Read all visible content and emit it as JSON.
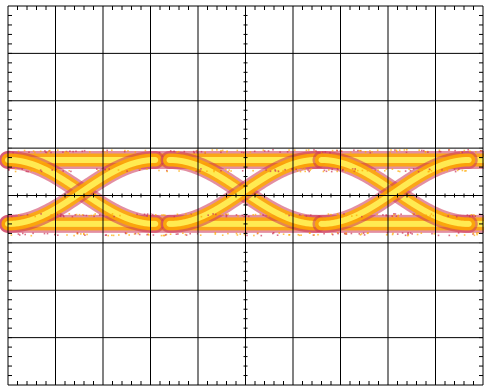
{
  "colors": {
    "background": "#ffffff",
    "grid": "#000000",
    "trace_core": "#ffee55",
    "trace_mid": "#ffaa00",
    "trace_edge": "#cc3355"
  },
  "chart_data": {
    "type": "line",
    "title": "",
    "xlabel": "",
    "ylabel": "",
    "grid": true,
    "legend": "none",
    "x_divisions": 10,
    "y_divisions": 8,
    "minor_ticks_per_division": 5,
    "xlim": [
      0,
      10
    ],
    "ylim": [
      -4,
      4
    ],
    "signal": "eye-diagram",
    "logic_levels": {
      "high": 0.75,
      "low": -0.6
    },
    "crossings": [
      {
        "x": 1.85,
        "y": 0.0
      },
      {
        "x": 5.0,
        "y": 0.0
      },
      {
        "x": 8.15,
        "y": 0.0
      }
    ],
    "series": [
      {
        "values": [
          {
            "x": 0,
            "y": 0.75
          },
          {
            "x": 1.85,
            "y": 0.75
          },
          {
            "x": 5.0,
            "y": 0.75
          },
          {
            "x": 8.15,
            "y": 0.75
          },
          {
            "x": 10,
            "y": 0.75
          }
        ]
      },
      {
        "values": [
          {
            "x": 0,
            "y": -0.6
          },
          {
            "x": 1.85,
            "y": -0.6
          },
          {
            "x": 5.0,
            "y": -0.6
          },
          {
            "x": 8.15,
            "y": -0.6
          },
          {
            "x": 10,
            "y": -0.6
          }
        ]
      },
      {
        "values": [
          {
            "x": 0,
            "y": 0.75
          },
          {
            "x": 1.85,
            "y": 0.0
          },
          {
            "x": 3.1,
            "y": -0.6
          }
        ]
      },
      {
        "values": [
          {
            "x": 0,
            "y": -0.6
          },
          {
            "x": 1.85,
            "y": 0.0
          },
          {
            "x": 3.1,
            "y": 0.75
          }
        ]
      },
      {
        "values": [
          {
            "x": 3.4,
            "y": 0.75
          },
          {
            "x": 5.0,
            "y": 0.0
          },
          {
            "x": 6.5,
            "y": -0.6
          }
        ]
      },
      {
        "values": [
          {
            "x": 3.4,
            "y": -0.6
          },
          {
            "x": 5.0,
            "y": 0.0
          },
          {
            "x": 6.5,
            "y": 0.75
          }
        ]
      },
      {
        "values": [
          {
            "x": 6.6,
            "y": 0.75
          },
          {
            "x": 8.15,
            "y": 0.0
          },
          {
            "x": 9.7,
            "y": -0.6
          }
        ]
      },
      {
        "values": [
          {
            "x": 6.6,
            "y": -0.6
          },
          {
            "x": 8.15,
            "y": 0.0
          },
          {
            "x": 9.7,
            "y": 0.75
          }
        ]
      }
    ]
  }
}
